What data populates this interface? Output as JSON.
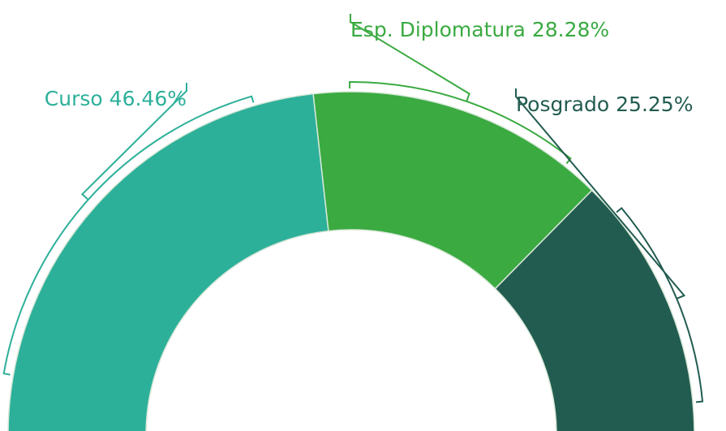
{
  "chart_data": {
    "type": "semi-donut",
    "categories": [
      "Curso",
      "Esp. Diplomatura",
      "Posgrado"
    ],
    "values": [
      46.46,
      28.28,
      25.25
    ],
    "value_labels": [
      "46.46%",
      "28.28%",
      "25.25%"
    ],
    "colors": [
      "#2db09a",
      "#3aaa41",
      "#225c50"
    ]
  }
}
